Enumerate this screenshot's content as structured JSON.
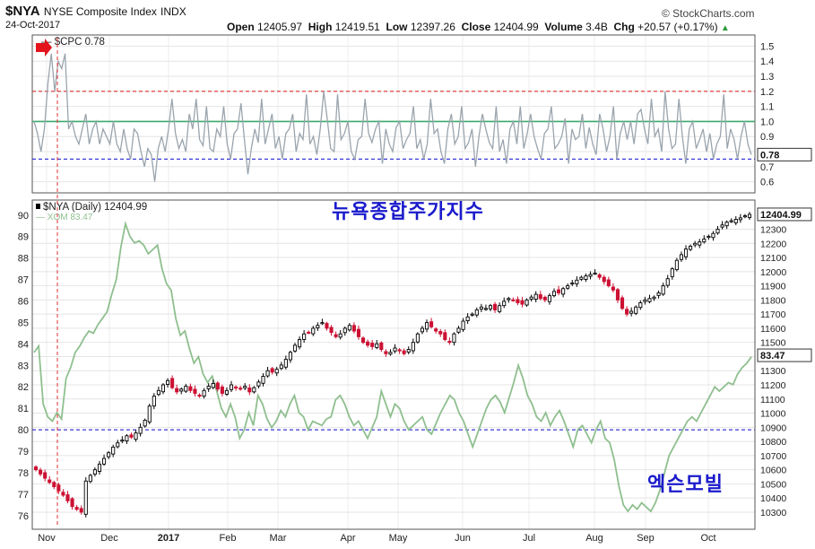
{
  "header": {
    "symbol": "$NYA",
    "name": "NYSE Composite Index",
    "exchange": "INDX",
    "date": "24-Oct-2017",
    "source": "© StockCharts.com",
    "open_label": "Open",
    "open": "12405.97",
    "high_label": "High",
    "high": "12419.51",
    "low_label": "Low",
    "low": "12397.26",
    "close_label": "Close",
    "close": "12404.99",
    "volume_label": "Volume",
    "volume": "3.4B",
    "chg_label": "Chg",
    "chg": "+20.57 (+0.17%)",
    "chg_arrow": "▲"
  },
  "annotations": {
    "top_label": "뉴욕종합주가지수",
    "bottom_label": "엑슨모빌",
    "arrow_icon": "red-right-arrow-icon"
  },
  "colors": {
    "candle_up": "#000000",
    "candle_down": "#cc1133",
    "xom_line": "#8fbf8f",
    "cpc_line": "#9aa4ad",
    "green_ref": "#3caa6e",
    "red_dash": "#e03030",
    "blue_dash": "#3a3ad8",
    "annotation_text": "#1a1acc"
  },
  "chart_data": [
    {
      "type": "line",
      "panel": "top",
      "series": [
        {
          "name": "$CPC",
          "last": 0.78
        }
      ],
      "legend": "$CPC 0.78",
      "y_ticks": [
        0.6,
        0.7,
        0.8,
        0.9,
        1.0,
        1.1,
        1.2,
        1.3,
        1.4,
        1.5
      ],
      "ylim": [
        0.55,
        1.55
      ],
      "reference_lines": [
        {
          "value": 1.2,
          "style": "red-dashed"
        },
        {
          "value": 1.0,
          "style": "green-solid"
        },
        {
          "value": 0.75,
          "style": "blue-dashed"
        }
      ],
      "last_value_label": "0.78",
      "grid": true,
      "values": [
        1.0,
        0.92,
        0.8,
        0.95,
        1.25,
        1.45,
        1.2,
        1.4,
        1.35,
        1.45,
        0.95,
        1.0,
        0.9,
        0.85,
        0.95,
        1.05,
        0.85,
        0.95,
        1.0,
        0.85,
        0.95,
        0.9,
        0.85,
        1.0,
        0.85,
        0.8,
        0.95,
        0.82,
        0.75,
        0.95,
        0.92,
        0.8,
        0.7,
        0.82,
        0.78,
        0.6,
        0.82,
        0.9,
        0.8,
        0.95,
        1.15,
        0.92,
        0.82,
        0.88,
        0.8,
        1.05,
        0.95,
        1.15,
        0.88,
        0.84,
        1.1,
        0.82,
        0.8,
        0.95,
        0.9,
        1.1,
        0.85,
        0.75,
        0.92,
        0.95,
        1.12,
        0.88,
        0.65,
        0.82,
        0.95,
        0.86,
        1.15,
        0.85,
        0.95,
        1.05,
        0.82,
        0.9,
        0.75,
        0.92,
        0.95,
        1.05,
        0.8,
        0.92,
        0.88,
        1.18,
        0.85,
        0.9,
        0.78,
        0.95,
        1.2,
        1.02,
        0.82,
        0.8,
        1.18,
        0.88,
        0.92,
        1.0,
        0.8,
        0.75,
        0.88,
        0.9,
        1.15,
        0.92,
        0.86,
        0.95,
        1.0,
        0.72,
        0.95,
        0.85,
        0.8,
        0.96,
        1.0,
        0.82,
        0.88,
        0.92,
        1.1,
        0.82,
        0.88,
        0.75,
        0.85,
        1.15,
        0.92,
        0.95,
        0.8,
        0.72,
        0.95,
        1.05,
        0.85,
        0.9,
        1.1,
        0.82,
        0.86,
        0.95,
        0.7,
        0.9,
        1.05,
        0.95,
        0.86,
        0.82,
        1.1,
        0.8,
        0.88,
        0.72,
        0.95,
        1.0,
        0.85,
        1.1,
        0.82,
        0.92,
        1.05,
        0.9,
        0.82,
        0.75,
        0.92,
        0.95,
        1.1,
        0.82,
        0.85,
        0.9,
        1.02,
        0.72,
        0.95,
        0.88,
        0.9,
        1.05,
        0.82,
        0.96,
        0.85,
        0.78,
        1.05,
        0.95,
        0.8,
        0.9,
        1.1,
        0.75,
        0.92,
        1.0,
        0.88,
        1.0,
        0.85,
        1.05,
        1.08,
        0.95,
        0.85,
        1.15,
        0.9,
        0.95,
        0.8,
        1.2,
        0.95,
        0.82,
        0.85,
        1.15,
        0.9,
        0.72,
        0.95,
        1.0,
        0.82,
        0.88,
        0.95,
        0.8,
        0.92,
        0.75,
        0.85,
        0.9,
        1.18,
        0.82,
        0.95,
        0.88,
        0.75,
        0.9,
        1.0,
        0.85,
        0.78
      ]
    },
    {
      "type": "candlestick",
      "panel": "bottom",
      "series": [
        {
          "name": "$NYA (Daily)",
          "last": 12404.99,
          "axis": "right"
        },
        {
          "name": "XOM",
          "last": 83.47,
          "axis": "left",
          "type": "line"
        }
      ],
      "legend": [
        "$NYA (Daily) 12404.99",
        "XOM 83.47"
      ],
      "x_ticks": [
        "Nov",
        "Dec",
        "2017",
        "Feb",
        "Mar",
        "Apr",
        "May",
        "Jun",
        "Jul",
        "Aug",
        "Sep",
        "Oct"
      ],
      "right_y_ticks": [
        10300,
        10400,
        10500,
        10600,
        10700,
        10800,
        10900,
        11000,
        11100,
        11200,
        11300,
        11400,
        11500,
        11600,
        11700,
        11800,
        11900,
        12000,
        12100,
        12200,
        12300
      ],
      "left_y_ticks": [
        76,
        77,
        78,
        79,
        80,
        81,
        82,
        83,
        84,
        85,
        86,
        87,
        88,
        89,
        90
      ],
      "right_ylim": [
        10230,
        12430
      ],
      "left_ylim": [
        75.7,
        90.2
      ],
      "reference_lines": [
        {
          "value": 80,
          "axis": "left",
          "style": "blue-dashed"
        }
      ],
      "last_value_labels": [
        "12404.99",
        "83.47"
      ],
      "grid": true,
      "nya_close": [
        10600,
        10570,
        10540,
        10510,
        10480,
        10450,
        10420,
        10380,
        10340,
        10320,
        10300,
        10520,
        10560,
        10600,
        10640,
        10680,
        10720,
        10760,
        10790,
        10810,
        10840,
        10830,
        10860,
        10900,
        10950,
        11050,
        11120,
        11160,
        11200,
        11230,
        11180,
        11150,
        11170,
        11190,
        11160,
        11140,
        11120,
        11160,
        11190,
        11210,
        11170,
        11140,
        11160,
        11200,
        11180,
        11170,
        11190,
        11150,
        11180,
        11220,
        11260,
        11300,
        11290,
        11310,
        11340,
        11380,
        11430,
        11480,
        11520,
        11560,
        11570,
        11600,
        11620,
        11640,
        11600,
        11570,
        11540,
        11560,
        11600,
        11620,
        11580,
        11540,
        11500,
        11480,
        11470,
        11490,
        11450,
        11420,
        11430,
        11460,
        11440,
        11420,
        11450,
        11500,
        11560,
        11600,
        11640,
        11610,
        11580,
        11560,
        11520,
        11500,
        11560,
        11600,
        11650,
        11680,
        11700,
        11730,
        11750,
        11740,
        11760,
        11730,
        11760,
        11790,
        11810,
        11800,
        11780,
        11770,
        11800,
        11820,
        11840,
        11810,
        11800,
        11830,
        11860,
        11850,
        11880,
        11900,
        11920,
        11940,
        11960,
        11970,
        11980,
        11990,
        11960,
        11930,
        11900,
        11870,
        11800,
        11740,
        11700,
        11720,
        11750,
        11780,
        11800,
        11810,
        11820,
        11850,
        11900,
        11950,
        12020,
        12080,
        12120,
        12160,
        12180,
        12200,
        12210,
        12230,
        12250,
        12270,
        12300,
        12330,
        12350,
        12360,
        12370,
        12380,
        12395,
        12405
      ],
      "xom_close": [
        83.6,
        83.9,
        81.2,
        80.6,
        80.4,
        80.8,
        80.5,
        82.4,
        82.9,
        83.6,
        83.9,
        84.3,
        84.6,
        84.5,
        84.9,
        85.2,
        85.5,
        86.3,
        87.0,
        88.5,
        89.6,
        89.0,
        88.7,
        88.8,
        88.6,
        88.2,
        88.4,
        88.6,
        87.5,
        86.8,
        86.5,
        85.2,
        84.4,
        84.6,
        83.8,
        83.1,
        83.4,
        82.6,
        82.2,
        82.5,
        81.8,
        81.0,
        80.6,
        81.2,
        80.6,
        79.6,
        80.0,
        80.8,
        80.2,
        81.6,
        81.2,
        80.5,
        80.1,
        80.4,
        80.9,
        80.6,
        81.2,
        81.6,
        80.8,
        80.6,
        80.0,
        80.4,
        80.3,
        80.2,
        80.5,
        80.6,
        81.4,
        81.6,
        81.2,
        80.6,
        80.2,
        80.4,
        80.0,
        79.6,
        80.1,
        80.6,
        81.8,
        81.2,
        80.6,
        81.2,
        81.0,
        80.4,
        80.0,
        80.2,
        80.4,
        80.6,
        80.0,
        79.8,
        80.3,
        80.8,
        81.2,
        81.6,
        81.4,
        80.8,
        80.4,
        79.8,
        79.2,
        79.8,
        80.4,
        81.0,
        81.4,
        81.6,
        81.3,
        80.8,
        81.5,
        82.2,
        83.0,
        82.4,
        81.6,
        81.2,
        80.6,
        80.4,
        80.8,
        80.2,
        80.6,
        80.9,
        80.4,
        79.8,
        79.2,
        80.0,
        80.2,
        79.8,
        79.4,
        80.0,
        80.4,
        79.6,
        79.4,
        78.6,
        77.4,
        76.5,
        76.2,
        76.5,
        76.3,
        76.6,
        76.4,
        76.2,
        76.6,
        77.2,
        78.0,
        78.8,
        79.2,
        79.6,
        80.0,
        80.4,
        80.6,
        80.4,
        80.8,
        81.2,
        81.6,
        82.0,
        81.8,
        82.0,
        82.2,
        82.1,
        82.6,
        82.9,
        83.1,
        83.4
      ]
    }
  ]
}
